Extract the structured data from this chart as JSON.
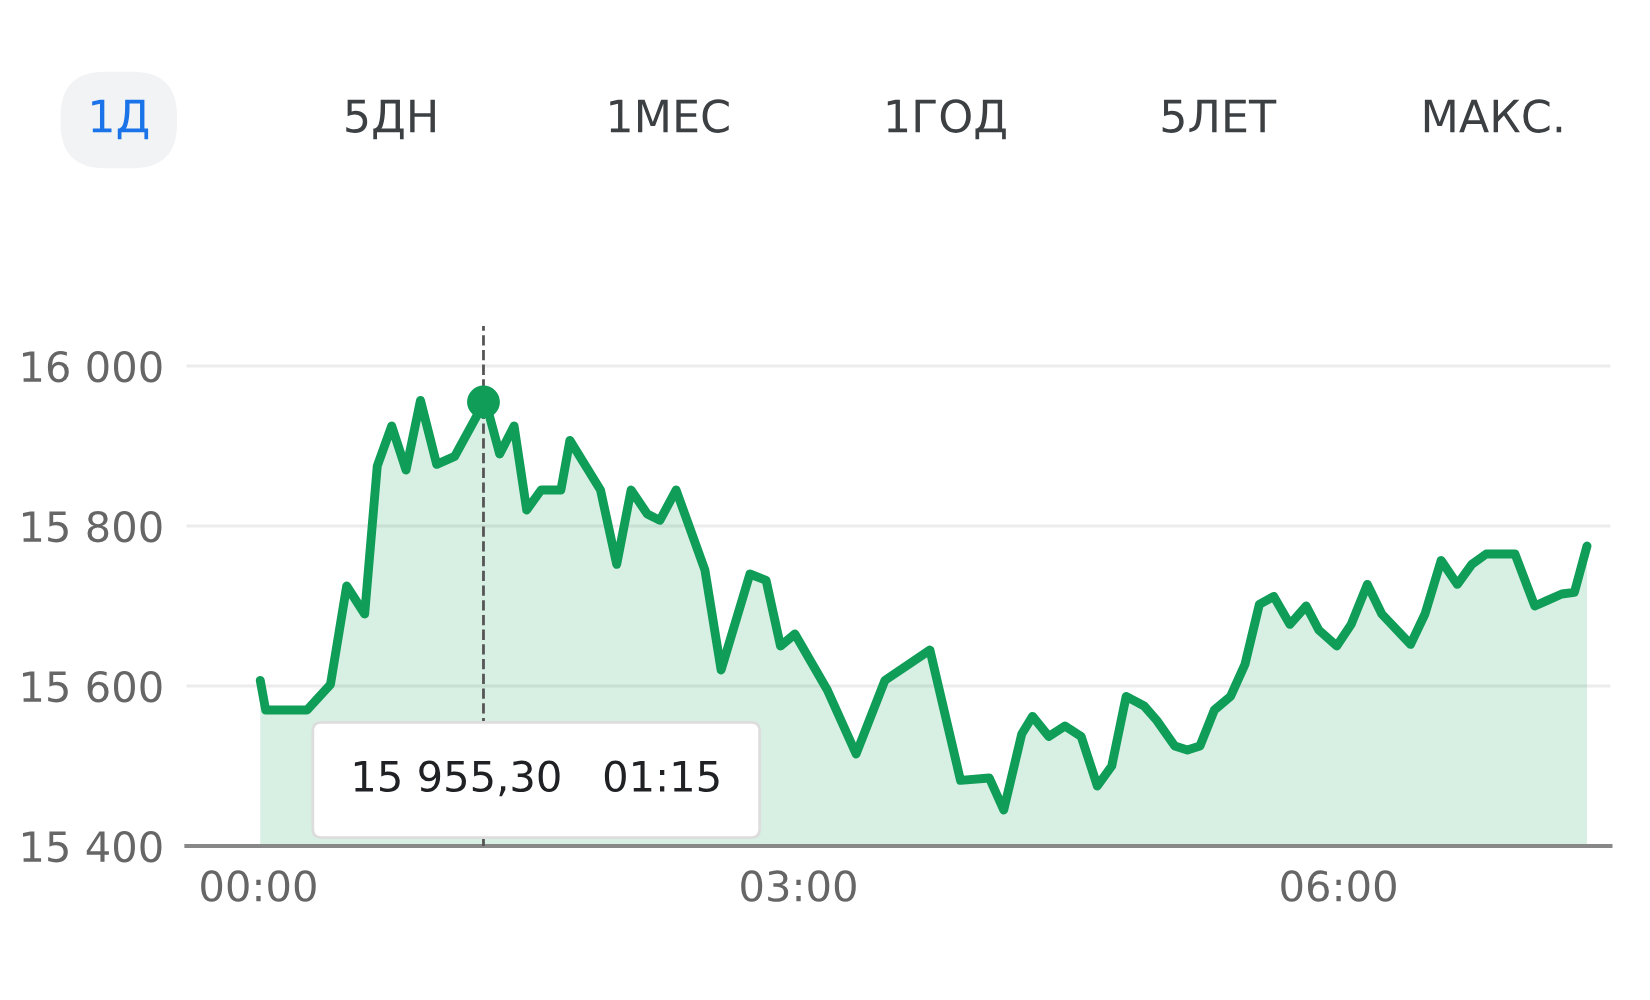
{
  "chart_data": {
    "type": "area",
    "x": [
      0.01,
      0.04,
      0.27,
      0.4,
      0.49,
      0.59,
      0.66,
      0.74,
      0.82,
      0.9,
      0.99,
      1.09,
      1.26,
      1.34,
      1.42,
      1.49,
      1.57,
      1.68,
      1.73,
      1.9,
      1.99,
      2.07,
      2.16,
      2.23,
      2.32,
      2.48,
      2.57,
      2.73,
      2.82,
      2.9,
      2.98,
      3.16,
      3.32,
      3.48,
      3.73,
      3.9,
      4.06,
      4.14,
      4.24,
      4.3,
      4.39,
      4.48,
      4.57,
      4.66,
      4.74,
      4.82,
      4.92,
      4.99,
      5.09,
      5.16,
      5.23,
      5.31,
      5.4,
      5.48,
      5.56,
      5.64,
      5.73,
      5.82,
      5.89,
      5.99,
      6.07,
      6.16,
      6.24,
      6.4,
      6.48,
      6.57,
      6.66,
      6.74,
      6.82,
      6.98,
      7.09,
      7.16,
      7.24,
      7.31,
      7.38
    ],
    "series": [
      {
        "color": "#0f9d58",
        "values": [
          15607,
          15570,
          15570,
          15602,
          15725,
          15690,
          15875,
          15925,
          15870,
          15957,
          15877,
          15887,
          15957,
          15890,
          15925,
          15820,
          15845,
          15845,
          15907,
          15845,
          15752,
          15845,
          15815,
          15807,
          15845,
          15745,
          15620,
          15740,
          15732,
          15650,
          15665,
          15595,
          15515,
          15607,
          15645,
          15482,
          15485,
          15445,
          15540,
          15562,
          15537,
          15550,
          15537,
          15475,
          15500,
          15587,
          15575,
          15557,
          15525,
          15520,
          15525,
          15570,
          15587,
          15627,
          15702,
          15712,
          15677,
          15700,
          15670,
          15650,
          15677,
          15727,
          15690,
          15652,
          15690,
          15757,
          15727,
          15752,
          15765,
          15765,
          15700,
          15707,
          15715,
          15717,
          15775
        ]
      },
      {
        "type": "scatter",
        "marker": "circle",
        "color": "#0f9d58",
        "x": [
          1.25
        ],
        "values": [
          15955
        ]
      }
    ],
    "xlim": [
      -0.4,
      7.51
    ],
    "ylim": [
      15400,
      16050
    ],
    "xticks": [
      {
        "value": 0,
        "label": "00:00"
      },
      {
        "value": 3,
        "label": "03:00"
      },
      {
        "value": 6,
        "label": "06:00"
      }
    ],
    "yticks": [
      {
        "value": 15400,
        "label": "15 400"
      },
      {
        "value": 15600,
        "label": "15 600"
      },
      {
        "value": 15800,
        "label": "15 800"
      },
      {
        "value": 16000,
        "label": "16 000"
      }
    ],
    "grid": "y",
    "line_style": "solid",
    "ref_lines": [
      {
        "axis": "x",
        "value": 1.25,
        "line_style": "dashed",
        "color": "#555555"
      }
    ],
    "annotations": [
      "1Д",
      "5ДН",
      "1МЕС",
      "1ГОД",
      "5ЛЕТ",
      "МАКС.",
      "15 955,30   01:15"
    ]
  }
}
